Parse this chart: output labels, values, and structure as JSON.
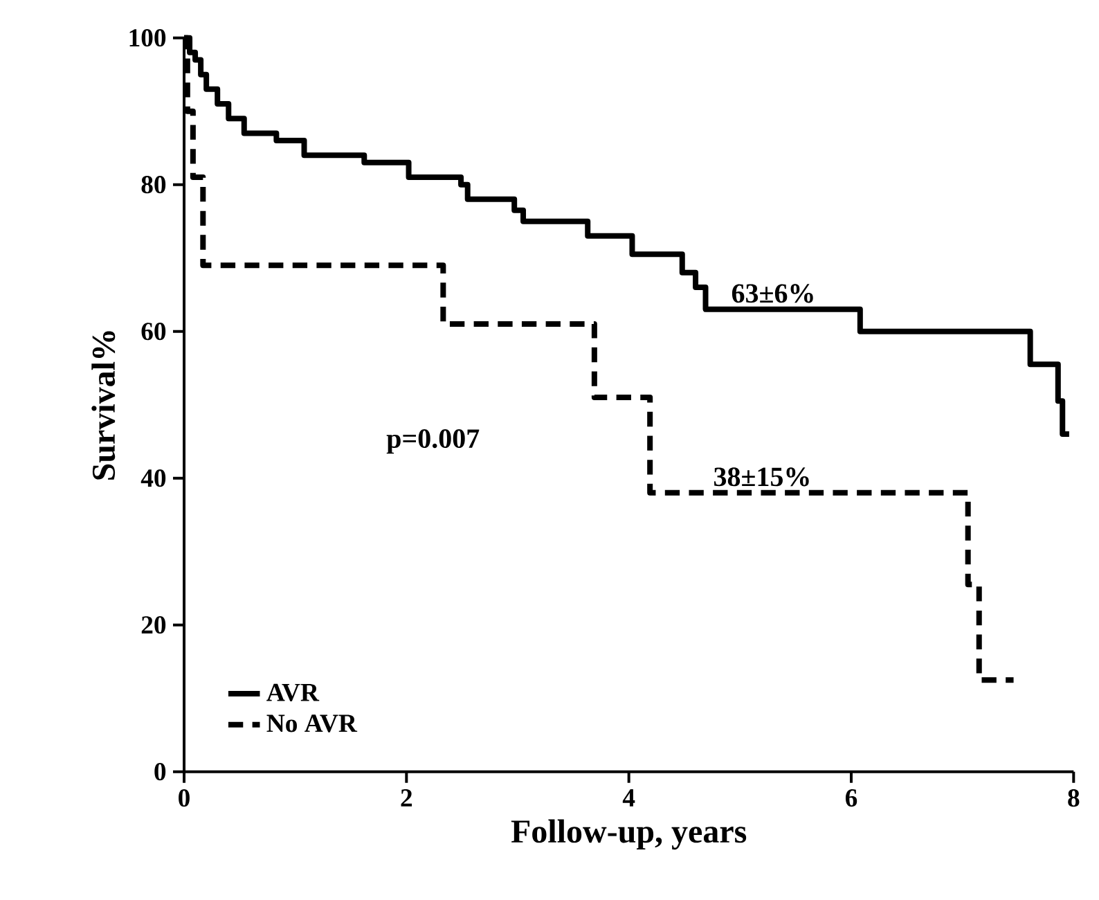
{
  "chart_data": {
    "type": "step",
    "xlabel": "Follow-up, years",
    "ylabel": "Survival%",
    "xlim": [
      0,
      8
    ],
    "ylim": [
      0,
      100
    ],
    "xticks": [
      0,
      2,
      4,
      6,
      8
    ],
    "yticks": [
      0,
      20,
      40,
      60,
      80,
      100
    ],
    "legend": "bottom left",
    "grid": false,
    "marker": "none",
    "series": [
      {
        "name": "AVR",
        "color": "#000000",
        "line_style": "solid",
        "x": [
          0,
          0.05,
          0.1,
          0.15,
          0.2,
          0.3,
          0.4,
          0.54,
          0.83,
          1.08,
          1.62,
          2.02,
          2.49,
          2.55,
          2.97,
          3.05,
          3.63,
          4.03,
          4.48,
          4.6,
          4.69,
          6.08,
          7.61,
          7.86,
          7.9,
          7.96
        ],
        "values": [
          100,
          98,
          97,
          95,
          93,
          91,
          89,
          87,
          86,
          84,
          83,
          81,
          80,
          78,
          76.5,
          75,
          73,
          70.5,
          68,
          66,
          63,
          60,
          55.5,
          50.5,
          46,
          46
        ]
      },
      {
        "name": "No AVR",
        "color": "#000000",
        "line_style": "dashed",
        "x": [
          0,
          0.03,
          0.08,
          0.17,
          2.33,
          3.69,
          4.19,
          7.05,
          7.15,
          7.46
        ],
        "values": [
          100,
          90,
          81,
          69,
          61,
          51,
          38,
          25.5,
          12.5,
          12.5
        ]
      }
    ],
    "annotations": [
      {
        "text": "63±6%",
        "x": 5.3,
        "y": 63
      },
      "p=0.007",
      {
        "text": "38±15%",
        "x": 5.2,
        "y": 38
      }
    ]
  }
}
